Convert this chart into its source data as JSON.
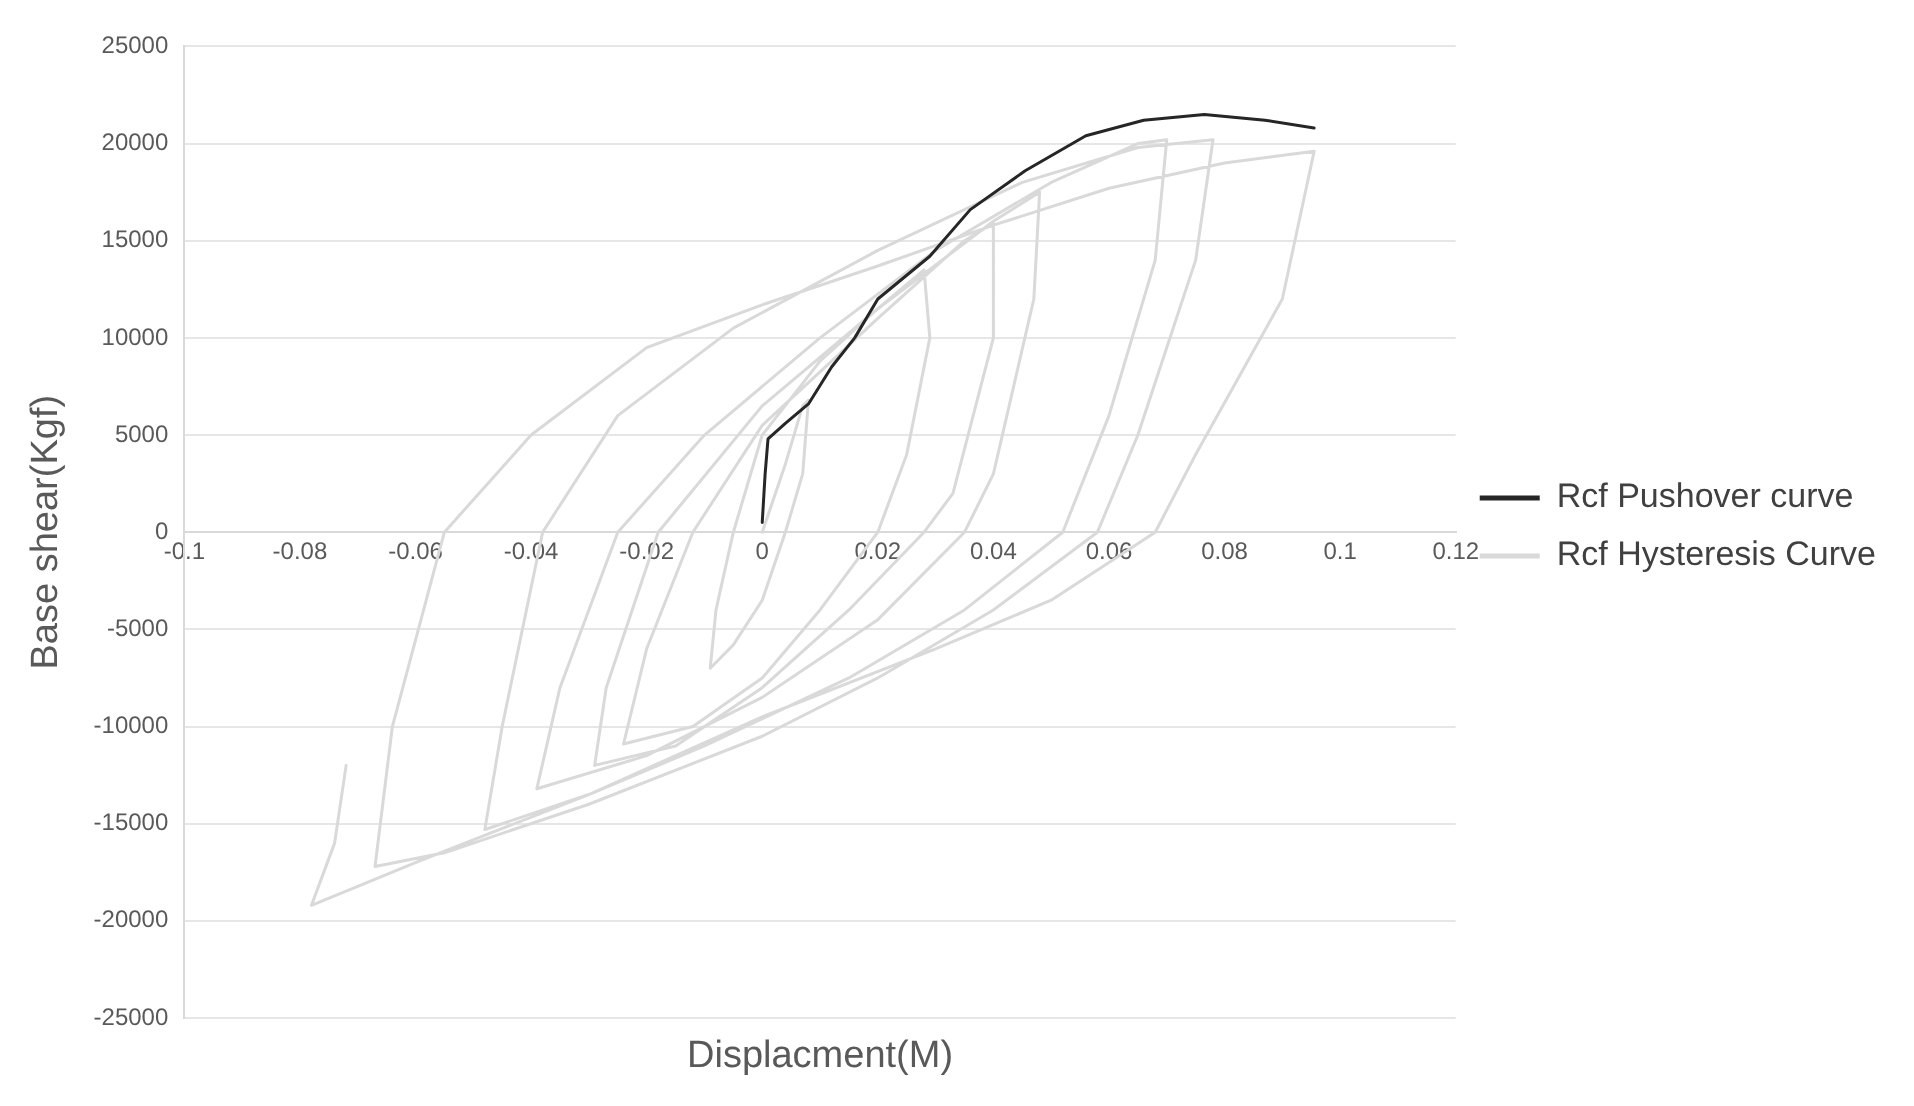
{
  "chart_data": {
    "type": "line",
    "xlabel": "Displacment(M)",
    "ylabel": "Base shear(Kgf)",
    "xlim": [
      -0.1,
      0.12
    ],
    "xticks": [
      -0.1,
      -0.08,
      -0.06,
      -0.04,
      -0.02,
      0,
      0.02,
      0.04,
      0.06,
      0.08,
      0.1,
      0.12
    ],
    "ylim": [
      -25000,
      25000
    ],
    "yticks": [
      -25000,
      -20000,
      -15000,
      -10000,
      -5000,
      0,
      5000,
      10000,
      15000,
      20000,
      25000
    ],
    "grid": "y",
    "legend": "right",
    "marker": "none",
    "line_style": "solid",
    "series": [
      {
        "name": "Rcf Pushover curve",
        "color": "#262626",
        "x": [
          0,
          0.0005,
          0.001,
          0.004,
          0.008,
          0.012,
          0.016,
          0.02,
          0.029,
          0.036,
          0.0455,
          0.056,
          0.066,
          0.0765,
          0.087,
          0.0955
        ],
        "values": [
          500,
          3000,
          4800,
          5600,
          6600,
          8500,
          10000,
          12000,
          14200,
          16600,
          18600,
          20400,
          21200,
          21500,
          21200,
          20800
        ]
      },
      {
        "name": "Rcf Hysteresis Curve",
        "color": "#d9d9d9",
        "x": [
          0,
          0.004,
          0.007,
          0.008,
          0.007,
          0.004,
          0,
          -0.005,
          -0.009,
          -0.008,
          -0.005,
          0,
          0.01,
          0.02,
          0.028,
          0.029,
          0.025,
          0.02,
          0.01,
          0,
          -0.012,
          -0.024,
          -0.02,
          -0.012,
          0,
          0.02,
          0.035,
          0.04,
          0.04,
          0.033,
          0.028,
          0.015,
          0,
          -0.015,
          -0.029,
          -0.027,
          -0.018,
          0,
          0.02,
          0.04,
          0.048,
          0.047,
          0.04,
          0.035,
          0.02,
          0,
          -0.02,
          -0.039,
          -0.035,
          -0.025,
          -0.01,
          0.01,
          0.03,
          0.05,
          0.065,
          0.07,
          0.068,
          0.06,
          0.052,
          0.035,
          0.015,
          -0.01,
          -0.03,
          -0.048,
          -0.045,
          -0.038,
          -0.025,
          -0.005,
          0.02,
          0.045,
          0.065,
          0.078,
          0.075,
          0.065,
          0.058,
          0.04,
          0.02,
          0,
          -0.03,
          -0.055,
          -0.067,
          -0.064,
          -0.055,
          -0.04,
          -0.02,
          0,
          0.02,
          0.04,
          0.06,
          0.08,
          0.0955,
          0.09,
          0.075,
          0.068,
          0.05,
          0.03,
          0,
          -0.03,
          -0.06,
          -0.078,
          -0.074,
          -0.072
        ],
        "values": [
          0,
          3500,
          6500,
          6800,
          3000,
          0,
          -3500,
          -5800,
          -7000,
          -4000,
          0,
          5000,
          8800,
          11500,
          13500,
          10000,
          4000,
          0,
          -4000,
          -7500,
          -10000,
          -10900,
          -6000,
          0,
          5500,
          11000,
          15000,
          15900,
          10000,
          2000,
          0,
          -4000,
          -8000,
          -11000,
          -12000,
          -8000,
          0,
          6500,
          11500,
          16000,
          17500,
          12000,
          3000,
          0,
          -4500,
          -8500,
          -11500,
          -13200,
          -8000,
          0,
          5000,
          10000,
          14500,
          18000,
          20000,
          20200,
          14000,
          6000,
          0,
          -4000,
          -7500,
          -11000,
          -13500,
          -15300,
          -10000,
          0,
          6000,
          10500,
          14500,
          18000,
          19800,
          20200,
          14000,
          5000,
          0,
          -4000,
          -7500,
          -10500,
          -14000,
          -16500,
          -17200,
          -10000,
          0,
          5000,
          9500,
          11700,
          13700,
          15800,
          17700,
          19000,
          19600,
          12000,
          4000,
          0,
          -3500,
          -6000,
          -9500,
          -13500,
          -17000,
          -19200,
          -16000,
          -12000
        ]
      }
    ]
  }
}
